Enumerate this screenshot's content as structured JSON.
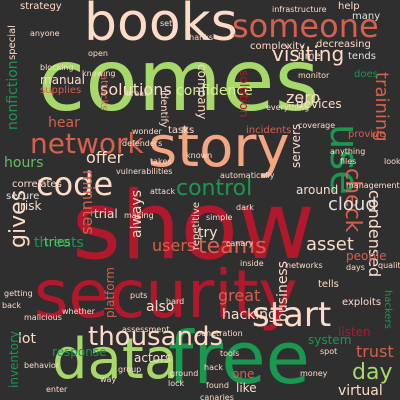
{
  "words": [
    {
      "text": "show",
      "color": "#b2182b"
    },
    {
      "text": "comes",
      "color": "#a6d96a"
    },
    {
      "text": "security",
      "color": "#b2182b"
    },
    {
      "text": "books",
      "color": "#fddbc7"
    },
    {
      "text": "free",
      "color": "#1a9850"
    },
    {
      "text": "data",
      "color": "#a6d96a"
    },
    {
      "text": "story",
      "color": "#f4a582"
    },
    {
      "text": "someone",
      "color": "#d6604d"
    },
    {
      "text": "code",
      "color": "#fddbc7"
    },
    {
      "text": "network",
      "color": "#d6604d"
    },
    {
      "text": "use",
      "color": "#1a9850"
    },
    {
      "text": "start",
      "color": "#fddbc7"
    },
    {
      "text": "thousands",
      "color": "#fddbc7"
    },
    {
      "text": "control",
      "color": "#1a9850"
    },
    {
      "text": "teams",
      "color": "#d6604d"
    },
    {
      "text": "check",
      "color": "#d6604d"
    },
    {
      "text": "solutions",
      "color": "#fddbc7"
    },
    {
      "text": "visiting",
      "color": "#fddbc7"
    },
    {
      "text": "confidence",
      "color": "#d9ef8b"
    },
    {
      "text": "cloud",
      "color": "#e0e0e0"
    },
    {
      "text": "day",
      "color": "#a6d96a"
    },
    {
      "text": "trust",
      "color": "#d6604d"
    },
    {
      "text": "hear",
      "color": "#d6604d"
    },
    {
      "text": "gives",
      "color": "#fddbc7"
    },
    {
      "text": "offer",
      "color": "#fddbc7"
    },
    {
      "text": "users",
      "color": "#d6604d"
    },
    {
      "text": "asset",
      "color": "#fddbc7"
    },
    {
      "text": "great",
      "color": "#d6604d"
    },
    {
      "text": "training",
      "color": "#d6604d"
    },
    {
      "text": "condensed",
      "color": "#fddbc7"
    },
    {
      "text": "zero",
      "color": "#fddbc7"
    },
    {
      "text": "threats",
      "color": "#1a9850"
    },
    {
      "text": "hours",
      "color": "#66bd63"
    },
    {
      "text": "nonfiction",
      "color": "#1a9850"
    },
    {
      "text": "minutes",
      "color": "#d6604d"
    },
    {
      "text": "always",
      "color": "#fddbc7"
    },
    {
      "text": "try",
      "color": "#fddbc7"
    },
    {
      "text": "lot",
      "color": "#fddbc7"
    },
    {
      "text": "virtual",
      "color": "#fddbc7"
    },
    {
      "text": "business",
      "color": "#fddbc7"
    },
    {
      "text": "hacking",
      "color": "#fddbc7"
    },
    {
      "text": "manual",
      "color": "#fddbc7"
    },
    {
      "text": "people",
      "color": "#d6604d"
    },
    {
      "text": "devices",
      "color": "#fddbc7"
    },
    {
      "text": "company",
      "color": "#fddbc7"
    },
    {
      "text": "solution",
      "color": "#b2182b"
    },
    {
      "text": "also",
      "color": "#fddbc7"
    },
    {
      "text": "servers",
      "color": "#fddbc7"
    },
    {
      "text": "around",
      "color": "#fddbc7"
    },
    {
      "text": "risk",
      "color": "#fddbc7"
    },
    {
      "text": "secure",
      "color": "#e0e0e0"
    },
    {
      "text": "tries",
      "color": "#66bd63"
    },
    {
      "text": "trial",
      "color": "#fddbc7"
    },
    {
      "text": "response",
      "color": "#1a9850"
    },
    {
      "text": "actors",
      "color": "#fddbc7"
    },
    {
      "text": "inventory",
      "color": "#1a9850"
    },
    {
      "text": "platform",
      "color": "#d6604d"
    },
    {
      "text": "listen",
      "color": "#b2182b"
    },
    {
      "text": "like",
      "color": "#fddbc7"
    },
    {
      "text": "one",
      "color": "#d6604d"
    },
    {
      "text": "system",
      "color": "#1a9850"
    },
    {
      "text": "tells",
      "color": "#fddbc7"
    },
    {
      "text": "strategy",
      "color": "#fddbc7"
    },
    {
      "text": "help",
      "color": "#fddbc7"
    },
    {
      "text": "many",
      "color": "#e0e0e0"
    },
    {
      "text": "complexity",
      "color": "#fddbc7"
    },
    {
      "text": "time",
      "color": "#fddbc7"
    },
    {
      "text": "decreasing",
      "color": "#fddbc7"
    },
    {
      "text": "tends",
      "color": "#e0e0e0"
    },
    {
      "text": "supplies",
      "color": "#d6604d"
    },
    {
      "text": "attacks",
      "color": "#d6604d"
    },
    {
      "text": "identify",
      "color": "#fddbc7"
    },
    {
      "text": "does",
      "color": "#1a9850"
    },
    {
      "text": "provide",
      "color": "#d6604d"
    },
    {
      "text": "incidents",
      "color": "#d6604d"
    },
    {
      "text": "tasks",
      "color": "#fddbc7"
    },
    {
      "text": "correlates",
      "color": "#fddbc7"
    },
    {
      "text": "repetitive",
      "color": "#fddbc7"
    },
    {
      "text": "hackers",
      "color": "#1a9850"
    },
    {
      "text": "exploits",
      "color": "#fddbc7"
    },
    {
      "text": "special",
      "color": "#fddbc7"
    },
    {
      "text": "vulnerabilities",
      "color": "#fddbc7"
    },
    {
      "text": "monitor",
      "color": "#fddbc7"
    },
    {
      "text": "coverage",
      "color": "#fddbc7"
    },
    {
      "text": "everything",
      "color": "#fddbc7"
    },
    {
      "text": "anything",
      "color": "#fddbc7"
    },
    {
      "text": "files",
      "color": "#fddbc7"
    },
    {
      "text": "looks",
      "color": "#fddbc7"
    },
    {
      "text": "management",
      "color": "#fddbc7"
    },
    {
      "text": "getting",
      "color": "#fddbc7"
    },
    {
      "text": "malicious",
      "color": "#fddbc7"
    },
    {
      "text": "whether",
      "color": "#fddbc7"
    },
    {
      "text": "assessment",
      "color": "#fddbc7"
    },
    {
      "text": "penetration",
      "color": "#fddbc7"
    },
    {
      "text": "known",
      "color": "#fddbc7"
    },
    {
      "text": "dark",
      "color": "#fddbc7"
    },
    {
      "text": "hard",
      "color": "#fddbc7"
    },
    {
      "text": "found",
      "color": "#fddbc7"
    },
    {
      "text": "ground",
      "color": "#fddbc7"
    },
    {
      "text": "hack",
      "color": "#fddbc7"
    },
    {
      "text": "canary",
      "color": "#fddbc7"
    },
    {
      "text": "networks",
      "color": "#fddbc7"
    },
    {
      "text": "infrastructure",
      "color": "#fddbc7"
    },
    {
      "text": "thanks",
      "color": "#fddbc7"
    },
    {
      "text": "open",
      "color": "#fddbc7"
    },
    {
      "text": "blocking",
      "color": "#fddbc7"
    },
    {
      "text": "knowing",
      "color": "#fddbc7"
    },
    {
      "text": "wonder",
      "color": "#fddbc7"
    },
    {
      "text": "break",
      "color": "#fddbc7"
    },
    {
      "text": "inside",
      "color": "#fddbc7"
    },
    {
      "text": "automatically",
      "color": "#fddbc7"
    },
    {
      "text": "defenders",
      "color": "#fddbc7"
    },
    {
      "text": "group",
      "color": "#fddbc7"
    },
    {
      "text": "behavior",
      "color": "#fddbc7"
    },
    {
      "text": "enter",
      "color": "#fddbc7"
    },
    {
      "text": "money",
      "color": "#fddbc7"
    },
    {
      "text": "lock",
      "color": "#fddbc7"
    },
    {
      "text": "attack",
      "color": "#fddbc7"
    },
    {
      "text": "anyone",
      "color": "#fddbc7"
    },
    {
      "text": "puts",
      "color": "#fddbc7"
    },
    {
      "text": "making",
      "color": "#fddbc7"
    },
    {
      "text": "simple",
      "color": "#fddbc7"
    },
    {
      "text": "back",
      "color": "#fddbc7"
    },
    {
      "text": "days",
      "color": "#fddbc7"
    },
    {
      "text": "quality",
      "color": "#fddbc7"
    },
    {
      "text": "canaries",
      "color": "#fddbc7"
    },
    {
      "text": "spot",
      "color": "#fddbc7"
    },
    {
      "text": "takes",
      "color": "#fddbc7"
    },
    {
      "text": "tools",
      "color": "#fddbc7"
    },
    {
      "text": "way",
      "color": "#fddbc7"
    },
    {
      "text": "set",
      "color": "#fddbc7"
    }
  ]
}
